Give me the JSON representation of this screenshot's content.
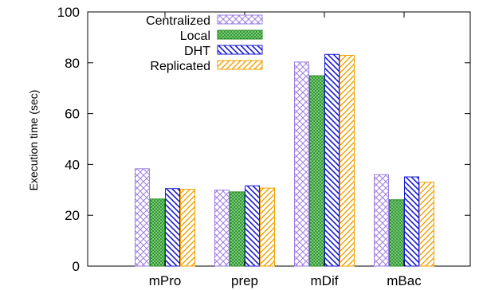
{
  "chart_data": {
    "type": "bar",
    "title": "",
    "xlabel": "",
    "ylabel": "Execution time (sec)",
    "ylim": [
      0,
      100
    ],
    "yticks": [
      0,
      20,
      40,
      60,
      80,
      100
    ],
    "grid": false,
    "legend_position": "top-left",
    "categories": [
      "mPro",
      "prep",
      "mDif",
      "mBac"
    ],
    "series": [
      {
        "name": "Centralized",
        "pattern": "crosshatch",
        "color": "#9b7fe0",
        "values": [
          38.3,
          29.9,
          80.3,
          36.0
        ]
      },
      {
        "name": "Local",
        "pattern": "dense-grid",
        "color": "#1f8f1f",
        "values": [
          26.4,
          29.2,
          74.9,
          26.1
        ]
      },
      {
        "name": "DHT",
        "pattern": "backslash",
        "color": "#1a1ad0",
        "values": [
          30.5,
          31.6,
          83.3,
          35.1
        ]
      },
      {
        "name": "Replicated",
        "pattern": "slash",
        "color": "#f0a000",
        "values": [
          30.2,
          30.7,
          82.9,
          33.0
        ]
      }
    ]
  }
}
